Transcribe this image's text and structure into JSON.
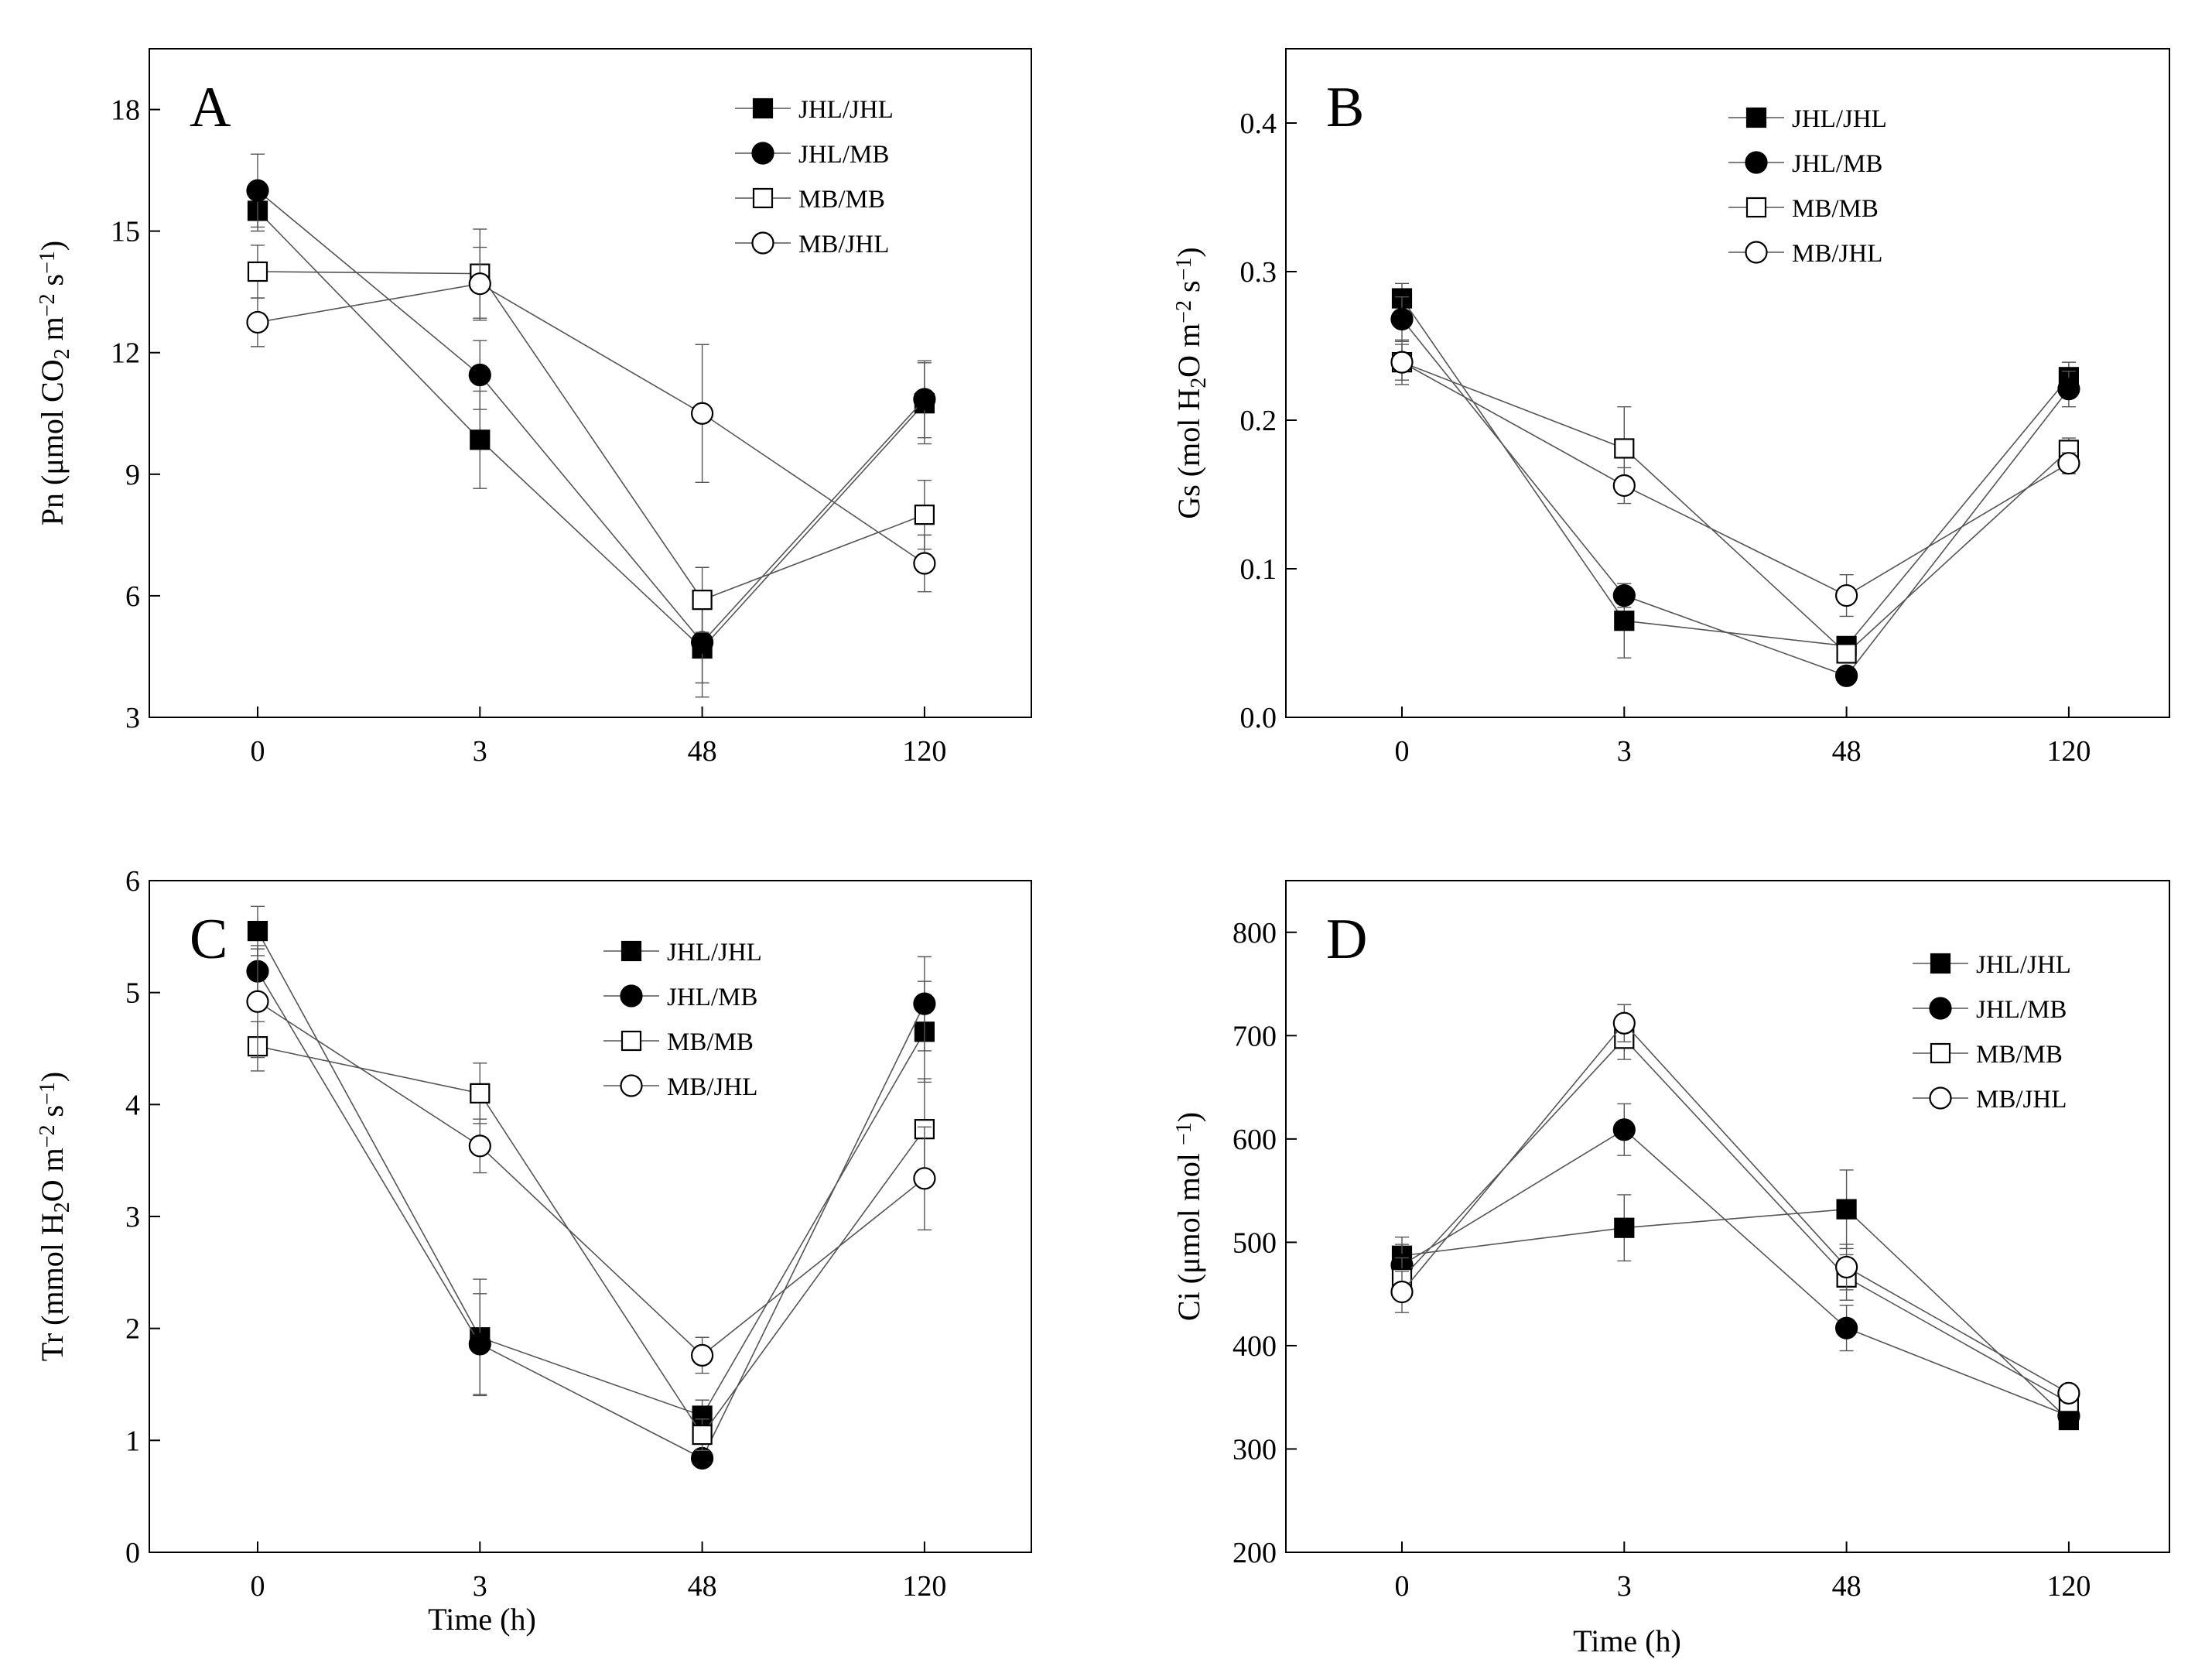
{
  "legend_series": [
    {
      "name": "JHL/JHL",
      "marker": "square",
      "filled": true
    },
    {
      "name": "JHL/MB",
      "marker": "circle",
      "filled": true
    },
    {
      "name": "MB/MB",
      "marker": "square",
      "filled": false
    },
    {
      "name": "MB/JHL",
      "marker": "circle",
      "filled": false
    }
  ],
  "colors": {
    "marker": "#000000",
    "line": "#555555",
    "background": "#ffffff"
  },
  "chart_data": [
    {
      "id": "A",
      "panel_letter": "A",
      "type": "line",
      "categories": [
        "0",
        "3",
        "48",
        "120"
      ],
      "xlabel": "",
      "ylabel": "Pn (μmol CO2  m−2 s−1)",
      "ylabel_parts": [
        {
          "t": "Pn (μmol CO"
        },
        {
          "t": "2",
          "sub": true
        },
        {
          "t": "  m"
        },
        {
          "t": "−2",
          "sup": true
        },
        {
          "t": " s"
        },
        {
          "t": "−1",
          "sup": true
        },
        {
          "t": ")"
        }
      ],
      "ylim": [
        3,
        19.5
      ],
      "yticks": [
        3,
        6,
        9,
        12,
        15,
        18
      ],
      "ytick_labels": [
        "3",
        "6",
        "9",
        "12",
        "15",
        "18"
      ],
      "legend_position": "top-right",
      "series": [
        {
          "name": "JHL/JHL",
          "values": [
            15.5,
            9.85,
            4.7,
            10.75
          ],
          "errors": [
            0.5,
            1.2,
            1.2,
            1.0
          ]
        },
        {
          "name": "JHL/MB",
          "values": [
            16.0,
            11.45,
            4.85,
            10.85
          ],
          "errors": [
            0.9,
            0.85,
            1.0,
            0.95
          ]
        },
        {
          "name": "MB/MB",
          "values": [
            14.0,
            13.95,
            5.9,
            8.0
          ],
          "errors": [
            0.65,
            1.1,
            0.8,
            0.85
          ]
        },
        {
          "name": "MB/JHL",
          "values": [
            12.75,
            13.7,
            10.5,
            6.8
          ],
          "errors": [
            0.6,
            0.9,
            1.7,
            0.7
          ]
        }
      ]
    },
    {
      "id": "B",
      "panel_letter": "B",
      "type": "line",
      "categories": [
        "0",
        "3",
        "48",
        "120"
      ],
      "xlabel": "",
      "ylabel": "Gs (mol H2O m−2 s−1)",
      "ylabel_parts": [
        {
          "t": "Gs (mol H"
        },
        {
          "t": "2",
          "sub": true
        },
        {
          "t": "O m"
        },
        {
          "t": "−2",
          "sup": true
        },
        {
          "t": " s"
        },
        {
          "t": "−1",
          "sup": true
        },
        {
          "t": ")"
        }
      ],
      "ylim": [
        0,
        0.45
      ],
      "yticks": [
        0,
        0.1,
        0.2,
        0.3,
        0.4
      ],
      "ytick_labels": [
        "0.0",
        "0.1",
        "0.2",
        "0.3",
        "0.4"
      ],
      "legend_position": "top-right",
      "series": [
        {
          "name": "JHL/JHL",
          "values": [
            0.282,
            0.065,
            0.048,
            0.229
          ],
          "errors": [
            0.01,
            0.025,
            0.005,
            0.01
          ]
        },
        {
          "name": "JHL/MB",
          "values": [
            0.268,
            0.082,
            0.028,
            0.221
          ],
          "errors": [
            0.015,
            0.008,
            0.004,
            0.012
          ]
        },
        {
          "name": "MB/MB",
          "values": [
            0.239,
            0.181,
            0.043,
            0.18
          ],
          "errors": [
            0.012,
            0.028,
            0.006,
            0.008
          ]
        },
        {
          "name": "MB/JHL",
          "values": [
            0.239,
            0.156,
            0.082,
            0.171
          ],
          "errors": [
            0.015,
            0.012,
            0.014,
            0.007
          ]
        }
      ]
    },
    {
      "id": "C",
      "panel_letter": "C",
      "type": "line",
      "categories": [
        "0",
        "3",
        "48",
        "120"
      ],
      "xlabel": "Time (h)",
      "ylabel": "Tr (mmol H2O m−2 s−1)",
      "ylabel_parts": [
        {
          "t": "Tr (mmol H"
        },
        {
          "t": "2",
          "sub": true
        },
        {
          "t": "O m"
        },
        {
          "t": "−2",
          "sup": true
        },
        {
          "t": " s"
        },
        {
          "t": "−1",
          "sup": true
        },
        {
          "t": ")"
        }
      ],
      "ylim": [
        0,
        6
      ],
      "yticks": [
        0,
        1,
        2,
        3,
        4,
        5,
        6
      ],
      "ytick_labels": [
        "0",
        "1",
        "2",
        "3",
        "4",
        "5",
        "6"
      ],
      "legend_position": "top-right",
      "series": [
        {
          "name": "JHL/JHL",
          "values": [
            5.55,
            1.92,
            1.22,
            4.65
          ],
          "errors": [
            0.22,
            0.52,
            0.14,
            0.45
          ]
        },
        {
          "name": "JHL/MB",
          "values": [
            5.19,
            1.86,
            0.84,
            4.9
          ],
          "errors": [
            0.2,
            0.45,
            0.07,
            0.42
          ]
        },
        {
          "name": "MB/MB",
          "values": [
            4.52,
            4.1,
            1.05,
            3.78
          ],
          "errors": [
            0.22,
            0.27,
            0.14,
            0.45
          ]
        },
        {
          "name": "MB/JHL",
          "values": [
            4.92,
            3.63,
            1.76,
            3.34
          ],
          "errors": [
            0.5,
            0.24,
            0.16,
            0.46
          ]
        }
      ]
    },
    {
      "id": "D",
      "panel_letter": "D",
      "type": "line",
      "categories": [
        "0",
        "3",
        "48",
        "120"
      ],
      "xlabel": "Time (h)",
      "ylabel": "Ci (μmol mol −1)",
      "ylabel_parts": [
        {
          "t": "Ci (μmol mol "
        },
        {
          "t": "−1",
          "sup": true
        },
        {
          "t": ")"
        }
      ],
      "ylim": [
        200,
        850
      ],
      "yticks": [
        200,
        300,
        400,
        500,
        600,
        700,
        800
      ],
      "ytick_labels": [
        "200",
        "300",
        "400",
        "500",
        "600",
        "700",
        "800"
      ],
      "legend_position": "top-right",
      "series": [
        {
          "name": "JHL/JHL",
          "values": [
            487,
            514,
            532,
            328
          ],
          "errors": [
            18,
            32,
            38,
            8
          ]
        },
        {
          "name": "JHL/MB",
          "values": [
            478,
            609,
            417,
            332
          ],
          "errors": [
            20,
            25,
            22,
            8
          ]
        },
        {
          "name": "MB/MB",
          "values": [
            465,
            697,
            466,
            345
          ],
          "errors": [
            20,
            20,
            22,
            8
          ]
        },
        {
          "name": "MB/JHL",
          "values": [
            452,
            712,
            476,
            354
          ],
          "errors": [
            20,
            18,
            22,
            8
          ]
        }
      ]
    }
  ]
}
